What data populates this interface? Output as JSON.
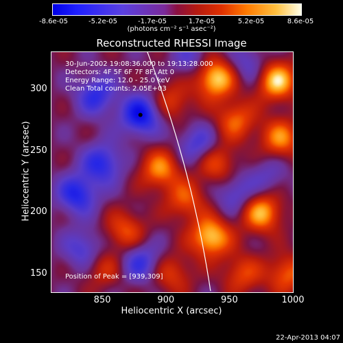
{
  "chart_data": {
    "type": "heatmap",
    "title": "Reconstructed RHESSI Image",
    "xlabel": "Heliocentric X (arcsec)",
    "ylabel": "Heliocentric Y (arcsec)",
    "xlim": [
      810,
      1000
    ],
    "ylim": [
      135,
      330
    ],
    "x_ticks": [
      850,
      900,
      950,
      1000
    ],
    "y_ticks": [
      150,
      200,
      250,
      300
    ],
    "colorbar": {
      "min": -8.6e-05,
      "max": 8.6e-05,
      "tick_labels": [
        "-8.6e-05",
        "-5.2e-05",
        "-1.7e-05",
        "1.7e-05",
        "5.2e-05",
        "8.6e-05"
      ],
      "units_label": "(photons cm⁻² s⁻¹ asec⁻²)"
    },
    "annotations": [
      "30-Jun-2002 19:08:36.000 to 19:13:28.000",
      "Detectors: 4F 5F 6F 7F 8F, Att 0",
      "Energy Range: 12.0 - 25.0 keV",
      "Clean    Total counts: 2.05E+03"
    ],
    "peak_label": "Position of Peak = [939,309]",
    "peak_position": [
      939,
      309
    ],
    "marker_position": [
      880,
      279
    ],
    "blobs": [
      {
        "x": 939,
        "y": 309,
        "v": 1.0
      },
      {
        "x": 987,
        "y": 307,
        "v": 0.95
      },
      {
        "x": 975,
        "y": 200,
        "v": 0.85
      },
      {
        "x": 935,
        "y": 180,
        "v": 0.95
      },
      {
        "x": 895,
        "y": 235,
        "v": 0.7
      },
      {
        "x": 915,
        "y": 210,
        "v": 0.55
      },
      {
        "x": 868,
        "y": 185,
        "v": 0.55
      },
      {
        "x": 940,
        "y": 240,
        "v": 0.55
      },
      {
        "x": 955,
        "y": 275,
        "v": 0.6
      },
      {
        "x": 990,
        "y": 260,
        "v": 0.7
      },
      {
        "x": 905,
        "y": 290,
        "v": 0.45
      },
      {
        "x": 960,
        "y": 150,
        "v": 0.5
      },
      {
        "x": 905,
        "y": 150,
        "v": 0.45
      },
      {
        "x": 850,
        "y": 155,
        "v": 0.4
      },
      {
        "x": 995,
        "y": 150,
        "v": 0.6
      },
      {
        "x": 880,
        "y": 279,
        "v": -0.85
      },
      {
        "x": 845,
        "y": 295,
        "v": -0.6
      },
      {
        "x": 830,
        "y": 215,
        "v": -0.7
      },
      {
        "x": 850,
        "y": 240,
        "v": -0.65
      },
      {
        "x": 880,
        "y": 160,
        "v": -0.55
      },
      {
        "x": 925,
        "y": 255,
        "v": -0.5
      },
      {
        "x": 955,
        "y": 215,
        "v": -0.45
      },
      {
        "x": 965,
        "y": 320,
        "v": -0.4
      },
      {
        "x": 920,
        "y": 325,
        "v": -0.35
      },
      {
        "x": 835,
        "y": 170,
        "v": -0.5
      },
      {
        "x": 980,
        "y": 230,
        "v": -0.3
      }
    ]
  },
  "footer_timestamp": "22-Apr-2013 04:07"
}
